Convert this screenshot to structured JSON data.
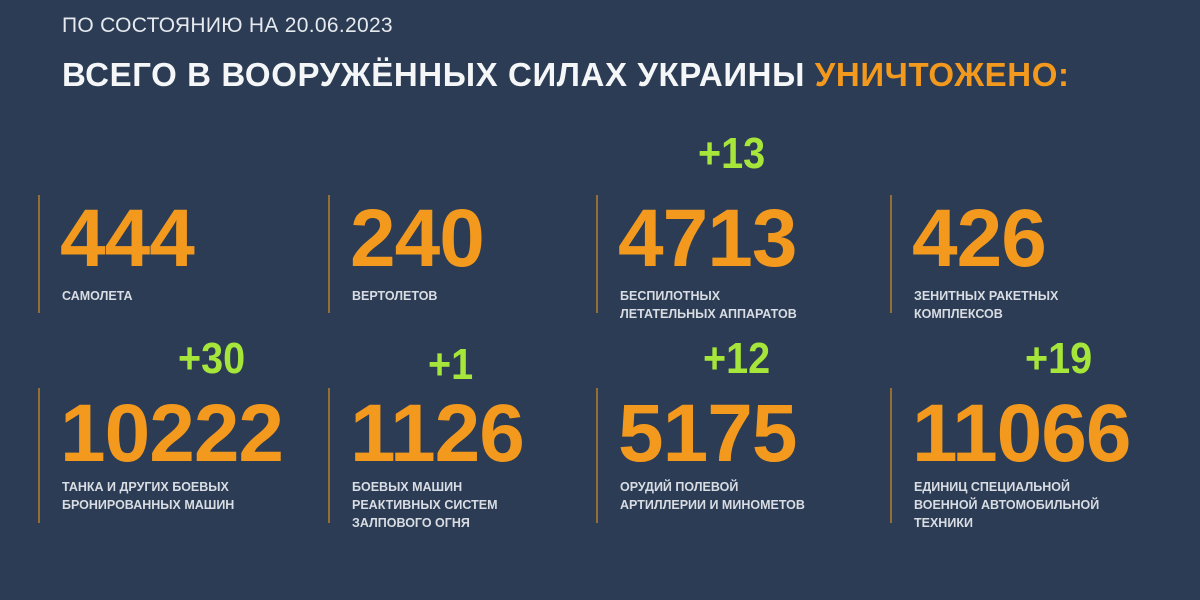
{
  "header": {
    "date_line": "ПО СОСТОЯНИЮ НА 20.06.2023",
    "title_main": "ВСЕГО В ВООРУЖЁННЫХ СИЛАХ УКРАИНЫ",
    "title_highlight": "УНИЧТОЖЕНО:"
  },
  "colors": {
    "background": "#2b3c54",
    "number": "#f39a1e",
    "delta": "#a6e53a",
    "text": "#f4f6f8"
  },
  "stats": [
    {
      "value": "444",
      "label_lines": [
        "САМОЛЕТА"
      ],
      "delta": ""
    },
    {
      "value": "240",
      "label_lines": [
        "ВЕРТОЛЕТОВ"
      ],
      "delta": ""
    },
    {
      "value": "4713",
      "label_lines": [
        "БЕСПИЛОТНЫХ",
        "ЛЕТАТЕЛЬНЫХ АППАРАТОВ"
      ],
      "delta": "+13"
    },
    {
      "value": "426",
      "label_lines": [
        "ЗЕНИТНЫХ РАКЕТНЫХ",
        "КОМПЛЕКСОВ"
      ],
      "delta": ""
    },
    {
      "value": "10222",
      "label_lines": [
        "ТАНКА И ДРУГИХ БОЕВЫХ",
        "БРОНИРОВАННЫХ МАШИН"
      ],
      "delta": "+30"
    },
    {
      "value": "1126",
      "label_lines": [
        "БОЕВЫХ МАШИН",
        "РЕАКТИВНЫХ СИСТЕМ",
        "ЗАЛПОВОГО ОГНЯ"
      ],
      "delta": "+1"
    },
    {
      "value": "5175",
      "label_lines": [
        "ОРУДИЙ ПОЛЕВОЙ",
        "АРТИЛЛЕРИИ И МИНОМЕТОВ"
      ],
      "delta": "+12"
    },
    {
      "value": "11066",
      "label_lines": [
        "ЕДИНИЦ СПЕЦИАЛЬНОЙ",
        "ВОЕННОЙ АВТОМОБИЛЬНОЙ",
        "ТЕХНИКИ"
      ],
      "delta": "+19"
    }
  ]
}
